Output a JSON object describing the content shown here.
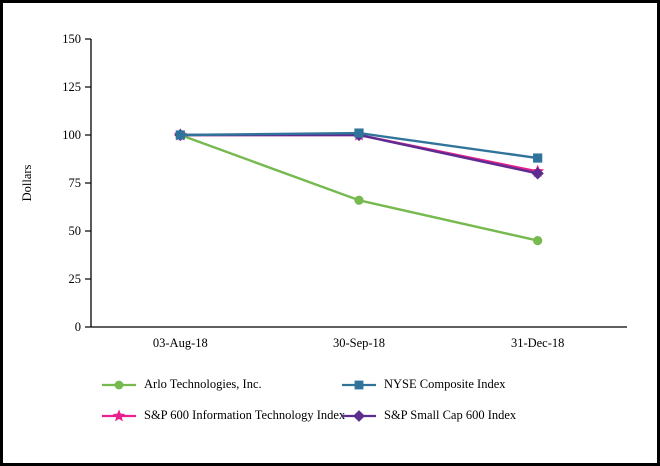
{
  "chart_data": {
    "type": "line",
    "title": "",
    "ylabel": "Dollars",
    "xlabel": "",
    "ylim": [
      0,
      150
    ],
    "yticks": [
      0,
      25,
      50,
      75,
      100,
      125,
      150
    ],
    "grid": false,
    "legend_position": "bottom",
    "categories": [
      "03-Aug-18",
      "30-Sep-18",
      "31-Dec-18"
    ],
    "series": [
      {
        "name": "Arlo Technologies, Inc.",
        "values": [
          100,
          66,
          45
        ],
        "color": "#76B94E",
        "marker": "circle"
      },
      {
        "name": "NYSE Composite Index",
        "values": [
          100,
          101,
          88
        ],
        "color": "#31749B",
        "marker": "square"
      },
      {
        "name": "S&P 600 Information Technology Index",
        "values": [
          100,
          100,
          81
        ],
        "color": "#E7218F",
        "marker": "star"
      },
      {
        "name": "S&P Small Cap 600 Index",
        "values": [
          100,
          100,
          80
        ],
        "color": "#5E2C8F",
        "marker": "diamond"
      }
    ],
    "draw_order": [
      0,
      2,
      3,
      1
    ]
  }
}
